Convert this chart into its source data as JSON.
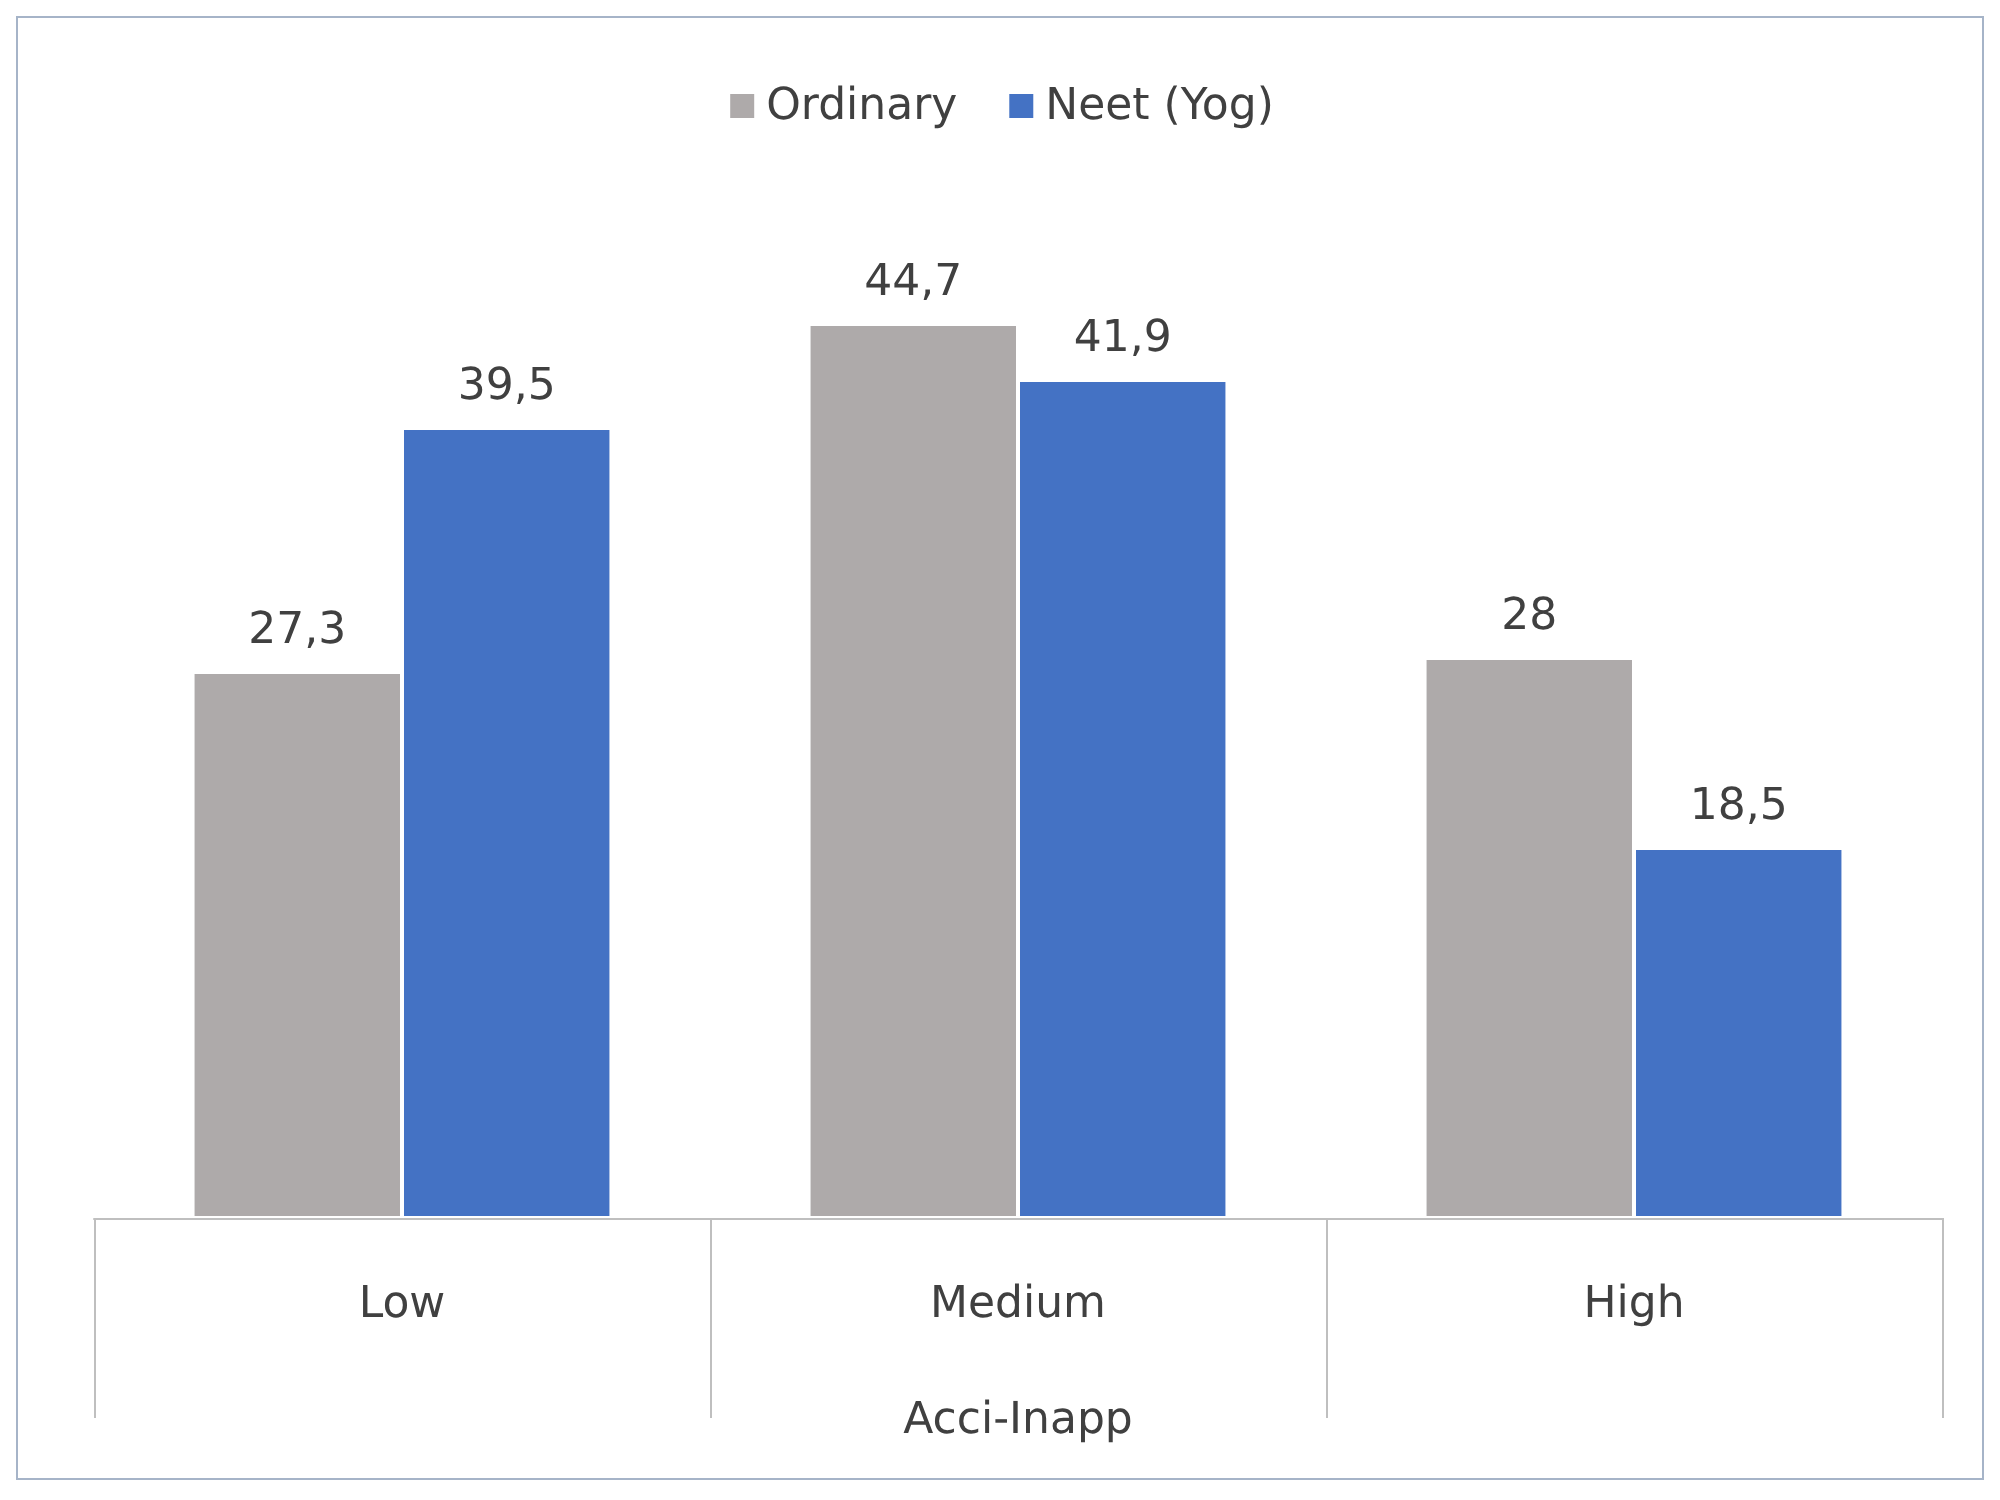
{
  "chart_data": {
    "type": "bar",
    "xlabel": "Acci-Inapp",
    "categories": [
      "Low",
      "Medium",
      "High"
    ],
    "series": [
      {
        "name": "Ordinary",
        "color": "#aeaaaa",
        "values": [
          27.3,
          44.7,
          28
        ],
        "value_labels": [
          "27,3",
          "44,7",
          "28"
        ]
      },
      {
        "name": "Neet (Yog)",
        "color": "#4472c4",
        "values": [
          39.5,
          41.9,
          18.5
        ],
        "value_labels": [
          "39,5",
          "41,9",
          "18,5"
        ]
      }
    ],
    "legend": "top"
  }
}
